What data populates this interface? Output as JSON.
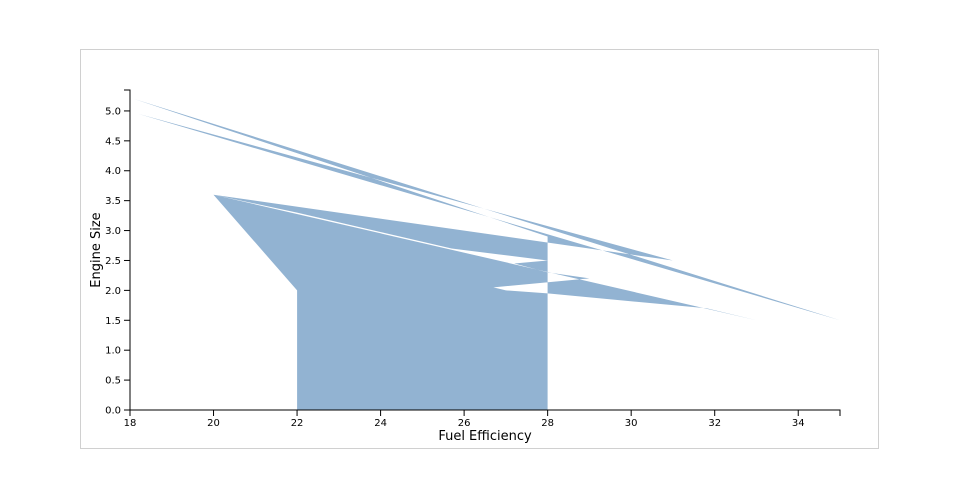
{
  "chart_data": {
    "type": "area",
    "title": "",
    "xlabel": "Fuel Efficiency",
    "ylabel": "Engine Size",
    "xlim": [
      18,
      35
    ],
    "ylim": [
      0,
      5.35
    ],
    "grid": false,
    "x_ticks": [
      "18",
      "20",
      "22",
      "24",
      "26",
      "28",
      "30",
      "32",
      "34"
    ],
    "y_ticks": [
      "0.0",
      "0.5",
      "1.0",
      "1.5",
      "2.0",
      "2.5",
      "3.0",
      "3.5",
      "4.0",
      "4.5",
      "5.0"
    ],
    "series": [
      {
        "color": "#92b3d2",
        "points": [
          {
            "x": 18.1,
            "y": 5.2
          },
          {
            "x": 35.0,
            "y": 1.5
          },
          {
            "x": 18.2,
            "y": 4.95
          },
          {
            "x": 31.0,
            "y": 2.5
          },
          {
            "x": 20.0,
            "y": 3.6
          },
          {
            "x": 33.0,
            "y": 1.5
          },
          {
            "x": 31.8,
            "y": 1.7
          },
          {
            "x": 28.0,
            "y": 1.95
          },
          {
            "x": 27.0,
            "y": 2.0
          },
          {
            "x": 26.7,
            "y": 2.05
          },
          {
            "x": 29.0,
            "y": 2.2
          },
          {
            "x": 28.0,
            "y": 2.3
          },
          {
            "x": 27.2,
            "y": 2.45
          },
          {
            "x": 28.0,
            "y": 2.5
          },
          {
            "x": 29.0,
            "y": 2.4
          },
          {
            "x": 28.0,
            "y": 2.5
          },
          {
            "x": 25.7,
            "y": 2.7
          },
          {
            "x": 22.0,
            "y": 3.3
          },
          {
            "x": 20.0,
            "y": 3.6
          },
          {
            "x": 22.0,
            "y": 2.0
          },
          {
            "x": 22.0,
            "y": 0.0
          },
          {
            "x": 28.0,
            "y": 0.0
          },
          {
            "x": 28.0,
            "y": 2.9
          }
        ]
      }
    ]
  }
}
